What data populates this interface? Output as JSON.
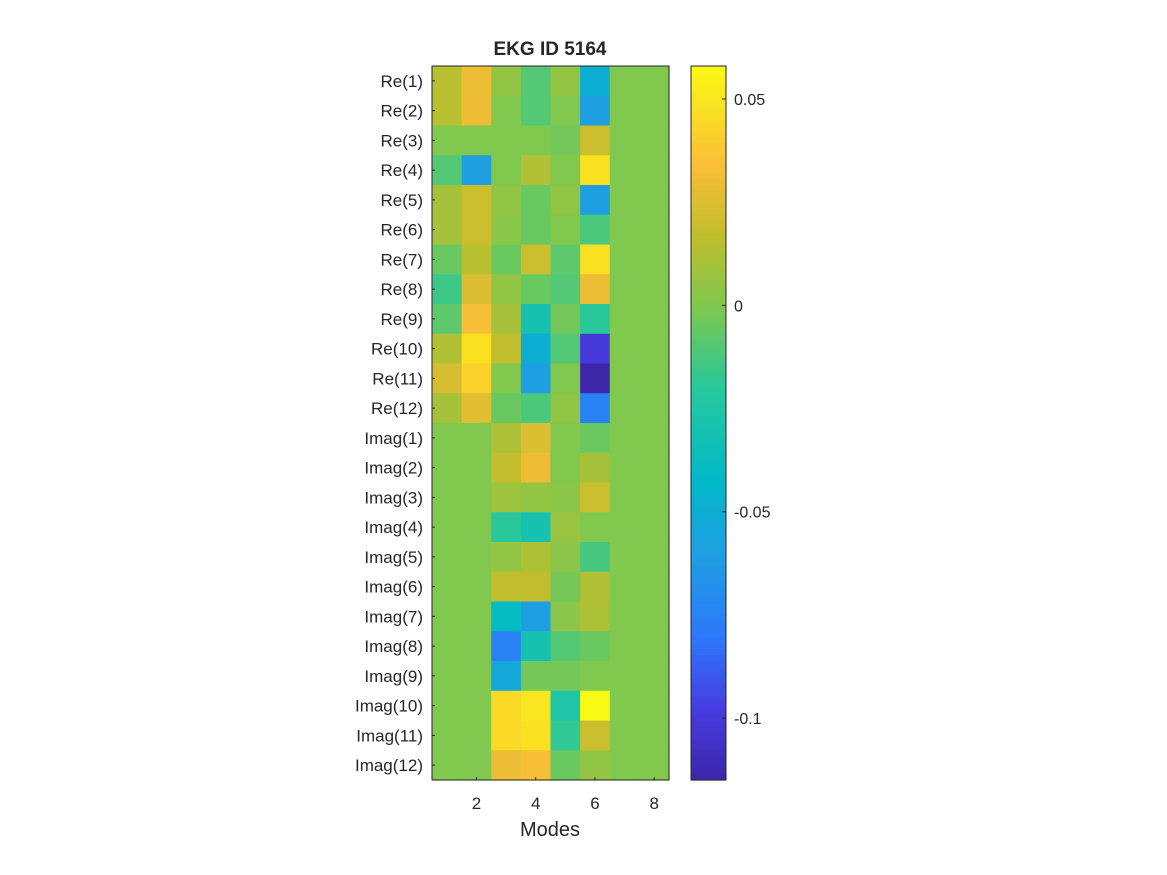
{
  "chart_data": {
    "type": "heatmap",
    "title": "EKG ID 5164",
    "xlabel": "Modes",
    "ylabel": "",
    "x_ticks": [
      "2",
      "4",
      "6",
      "8"
    ],
    "x_tick_values": [
      2,
      4,
      6,
      8
    ],
    "xlim": [
      0.5,
      8.5
    ],
    "columns": [
      1,
      2,
      3,
      4,
      5,
      6,
      7,
      8
    ],
    "rows": [
      "Re(1)",
      "Re(2)",
      "Re(3)",
      "Re(4)",
      "Re(5)",
      "Re(6)",
      "Re(7)",
      "Re(8)",
      "Re(9)",
      "Re(10)",
      "Re(11)",
      "Re(12)",
      "Imag(1)",
      "Imag(2)",
      "Imag(3)",
      "Imag(4)",
      "Imag(5)",
      "Imag(6)",
      "Imag(7)",
      "Imag(8)",
      "Imag(9)",
      "Imag(10)",
      "Imag(11)",
      "Imag(12)"
    ],
    "values": [
      [
        0.015,
        0.03,
        0.005,
        -0.01,
        0.005,
        -0.05,
        0,
        0
      ],
      [
        0.015,
        0.03,
        0,
        -0.01,
        0,
        -0.06,
        0,
        0
      ],
      [
        0,
        0,
        0,
        0,
        -0.003,
        0.02,
        0,
        0
      ],
      [
        -0.01,
        -0.06,
        0,
        0.013,
        0,
        0.048,
        0,
        0
      ],
      [
        0.01,
        0.02,
        0.005,
        -0.005,
        0.005,
        -0.06,
        0,
        0
      ],
      [
        0.01,
        0.02,
        0.003,
        -0.005,
        0,
        -0.012,
        0,
        0
      ],
      [
        -0.005,
        0.015,
        -0.005,
        0.02,
        -0.008,
        0.048,
        0,
        0
      ],
      [
        -0.015,
        0.025,
        0.005,
        -0.005,
        -0.01,
        0.03,
        0,
        0
      ],
      [
        -0.008,
        0.033,
        0.01,
        -0.03,
        -0.003,
        -0.02,
        0,
        0
      ],
      [
        0.013,
        0.048,
        0.017,
        -0.05,
        -0.01,
        -0.1,
        0,
        0
      ],
      [
        0.023,
        0.042,
        0,
        -0.06,
        0,
        -0.115,
        0,
        0
      ],
      [
        0.01,
        0.027,
        -0.005,
        -0.012,
        0.005,
        -0.075,
        0,
        0
      ],
      [
        0,
        0,
        0.012,
        0.025,
        0,
        -0.005,
        0,
        0
      ],
      [
        0,
        0,
        0.018,
        0.03,
        0,
        0.01,
        0,
        0
      ],
      [
        0,
        0,
        0.008,
        0.005,
        0.003,
        0.02,
        0,
        0
      ],
      [
        0,
        0,
        -0.02,
        -0.03,
        0.007,
        0,
        0,
        0
      ],
      [
        0,
        0,
        0.005,
        0.012,
        0.003,
        -0.013,
        0,
        0
      ],
      [
        0,
        0,
        0.017,
        0.017,
        -0.003,
        0.013,
        0,
        0
      ],
      [
        0,
        0,
        -0.04,
        -0.06,
        0.003,
        0.012,
        0,
        0
      ],
      [
        0,
        0,
        -0.075,
        -0.03,
        -0.01,
        -0.005,
        0,
        0
      ],
      [
        0,
        0,
        -0.055,
        -0.003,
        -0.003,
        0,
        0,
        0
      ],
      [
        0,
        0,
        0.045,
        0.05,
        -0.025,
        0.058,
        0,
        0
      ],
      [
        0,
        0,
        0.045,
        0.048,
        -0.018,
        0.02,
        0,
        0
      ],
      [
        0,
        0,
        0.03,
        0.033,
        -0.005,
        0.005,
        0,
        0
      ]
    ],
    "color_range": [
      -0.115,
      0.058
    ],
    "colorbar_ticks": [
      "0.05",
      "0",
      "-0.05",
      "-0.1"
    ],
    "colorbar_tick_values": [
      0.05,
      0,
      -0.05,
      -0.1
    ],
    "colormap": "parula",
    "grid": false
  }
}
